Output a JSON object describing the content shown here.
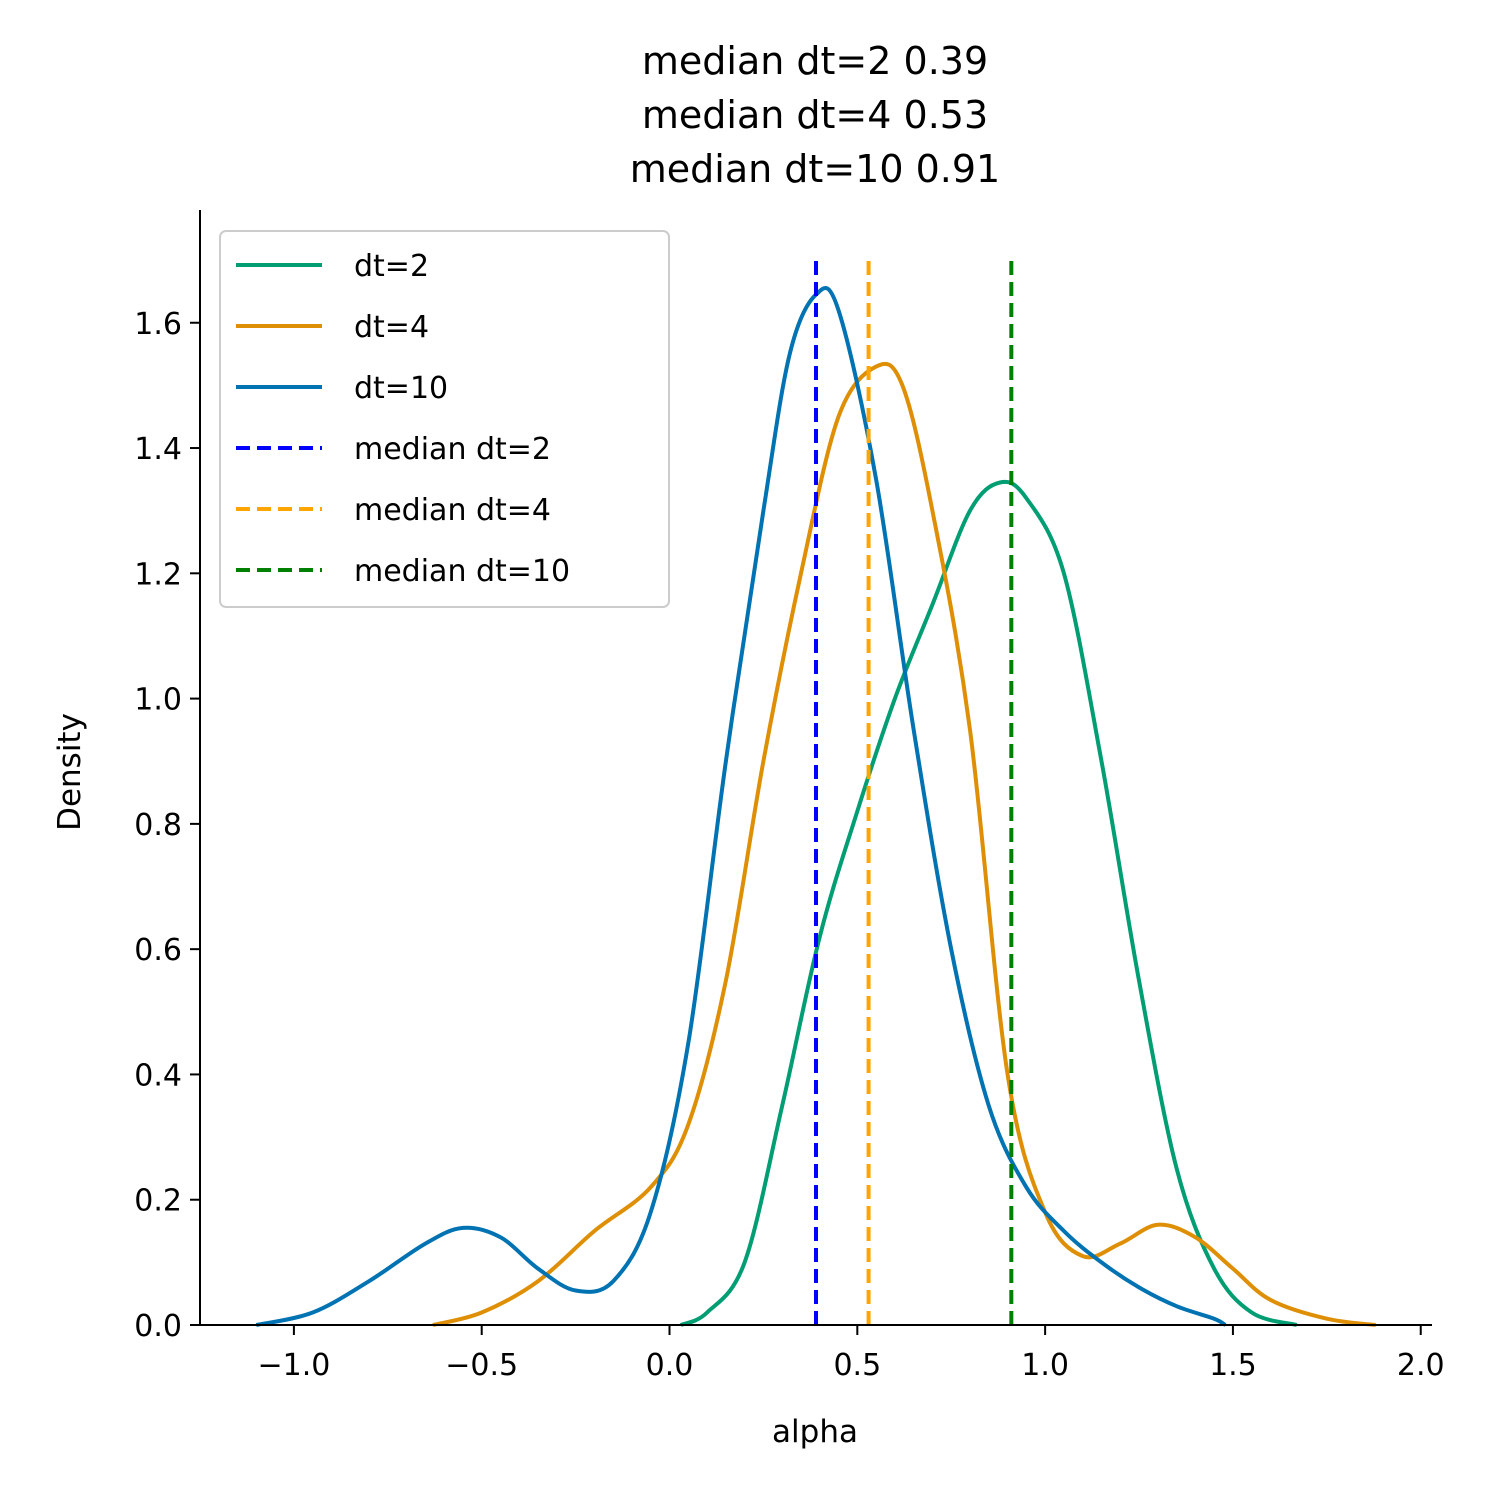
{
  "chart_data": {
    "type": "line",
    "title_lines": [
      "median dt=2 0.39",
      "median dt=4 0.53",
      "median dt=10 0.91"
    ],
    "xlabel": "alpha",
    "ylabel": "Density",
    "xlim": [
      -1.25,
      2.03
    ],
    "ylim": [
      0.0,
      1.78
    ],
    "xticks": [
      -1.0,
      -0.5,
      0.0,
      0.5,
      1.0,
      1.5,
      2.0
    ],
    "xtick_labels": [
      "−1.0",
      "−0.5",
      "0.0",
      "0.5",
      "1.0",
      "1.5",
      "2.0"
    ],
    "yticks": [
      0.0,
      0.2,
      0.4,
      0.6,
      0.8,
      1.0,
      1.2,
      1.4,
      1.6
    ],
    "ytick_labels": [
      "0.0",
      "0.2",
      "0.4",
      "0.6",
      "0.8",
      "1.0",
      "1.2",
      "1.4",
      "1.6"
    ],
    "legend_position": "upper-left",
    "series": [
      {
        "name": "dt=2",
        "color": "#029E73",
        "points": [
          [
            0.03,
            0.0
          ],
          [
            0.1,
            0.02
          ],
          [
            0.2,
            0.1
          ],
          [
            0.3,
            0.35
          ],
          [
            0.4,
            0.62
          ],
          [
            0.5,
            0.82
          ],
          [
            0.6,
            1.0
          ],
          [
            0.7,
            1.15
          ],
          [
            0.8,
            1.3
          ],
          [
            0.88,
            1.345
          ],
          [
            0.95,
            1.32
          ],
          [
            1.05,
            1.2
          ],
          [
            1.15,
            0.9
          ],
          [
            1.25,
            0.55
          ],
          [
            1.35,
            0.25
          ],
          [
            1.45,
            0.09
          ],
          [
            1.55,
            0.02
          ],
          [
            1.67,
            0.0
          ]
        ]
      },
      {
        "name": "dt=4",
        "color": "#DE8F05",
        "points": [
          [
            -0.63,
            0.0
          ],
          [
            -0.5,
            0.02
          ],
          [
            -0.35,
            0.07
          ],
          [
            -0.2,
            0.15
          ],
          [
            -0.05,
            0.22
          ],
          [
            0.05,
            0.32
          ],
          [
            0.15,
            0.55
          ],
          [
            0.25,
            0.9
          ],
          [
            0.35,
            1.2
          ],
          [
            0.45,
            1.45
          ],
          [
            0.55,
            1.53
          ],
          [
            0.62,
            1.5
          ],
          [
            0.7,
            1.3
          ],
          [
            0.8,
            0.95
          ],
          [
            0.9,
            0.4
          ],
          [
            1.0,
            0.18
          ],
          [
            1.1,
            0.11
          ],
          [
            1.2,
            0.13
          ],
          [
            1.3,
            0.16
          ],
          [
            1.4,
            0.14
          ],
          [
            1.5,
            0.09
          ],
          [
            1.6,
            0.04
          ],
          [
            1.75,
            0.01
          ],
          [
            1.88,
            0.0
          ]
        ]
      },
      {
        "name": "dt=10",
        "color": "#0173B2",
        "points": [
          [
            -1.1,
            0.0
          ],
          [
            -0.95,
            0.02
          ],
          [
            -0.8,
            0.07
          ],
          [
            -0.65,
            0.13
          ],
          [
            -0.55,
            0.155
          ],
          [
            -0.45,
            0.14
          ],
          [
            -0.35,
            0.09
          ],
          [
            -0.25,
            0.055
          ],
          [
            -0.15,
            0.07
          ],
          [
            -0.05,
            0.18
          ],
          [
            0.05,
            0.45
          ],
          [
            0.15,
            0.9
          ],
          [
            0.25,
            1.3
          ],
          [
            0.32,
            1.55
          ],
          [
            0.39,
            1.645
          ],
          [
            0.45,
            1.62
          ],
          [
            0.55,
            1.35
          ],
          [
            0.65,
            0.95
          ],
          [
            0.75,
            0.6
          ],
          [
            0.85,
            0.35
          ],
          [
            0.95,
            0.22
          ],
          [
            1.05,
            0.15
          ],
          [
            1.15,
            0.1
          ],
          [
            1.25,
            0.06
          ],
          [
            1.35,
            0.03
          ],
          [
            1.45,
            0.01
          ],
          [
            1.48,
            0.0
          ]
        ]
      }
    ],
    "medians": [
      {
        "name": "median dt=2",
        "value": 0.39,
        "color": "#0000FF",
        "y_top": 1.7
      },
      {
        "name": "median dt=4",
        "value": 0.53,
        "color": "#FFA500",
        "y_top": 1.7
      },
      {
        "name": "median dt=10",
        "value": 0.91,
        "color": "#008000",
        "y_top": 1.7
      }
    ]
  }
}
